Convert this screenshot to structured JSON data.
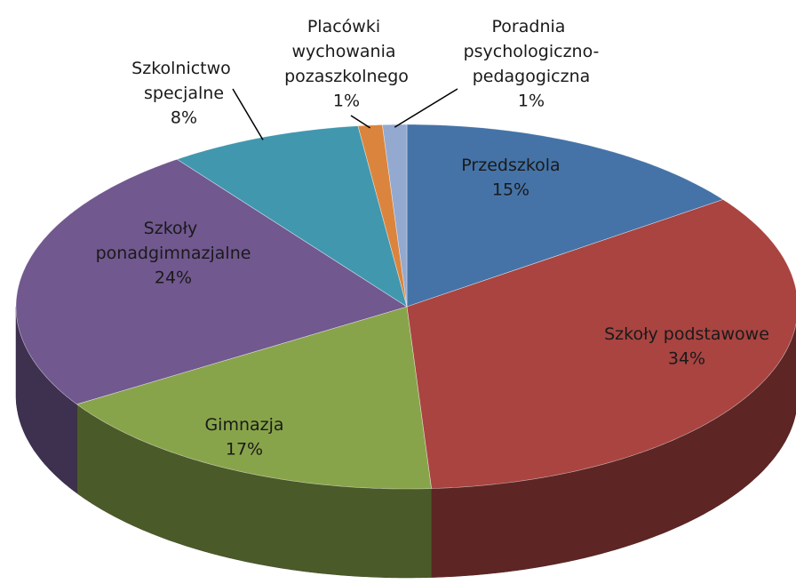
{
  "chart_data": {
    "type": "pie",
    "categories": [
      "Przedszkola",
      "Szkoły podstawowe",
      "Gimnazja",
      "Szkoły ponadgimnazjalne",
      "Szkolnictwo specjalne",
      "Placówki wychowania pozaszkolnego",
      "Poradnia psychologiczno-pedagogiczna"
    ],
    "values": [
      15,
      34,
      17,
      24,
      8,
      1,
      1
    ],
    "value_labels": [
      "15%",
      "34%",
      "17%",
      "24%",
      "8%",
      "1%",
      "1%"
    ],
    "colors": [
      "#4573a7",
      "#a94441",
      "#88a44a",
      "#71588f",
      "#4197ae",
      "#db843d",
      "#93a9cf"
    ]
  }
}
